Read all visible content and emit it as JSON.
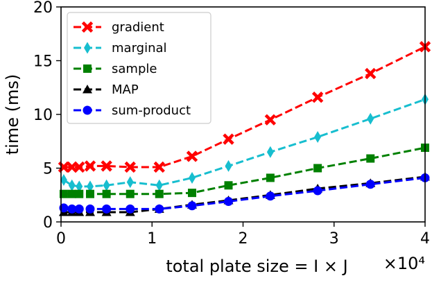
{
  "chart_data": {
    "type": "line",
    "xlabel": "total plate size = I × J",
    "ylabel": "time (ms)",
    "x_multiplier": "×10⁴",
    "xlim": [
      0,
      40000
    ],
    "ylim": [
      0,
      20
    ],
    "xticks": [
      0,
      10000,
      20000,
      30000,
      40000
    ],
    "xtick_labels": [
      "0",
      "1",
      "2",
      "3",
      "4"
    ],
    "yticks": [
      0,
      5,
      10,
      15,
      20
    ],
    "ytick_labels": [
      "0",
      "5",
      "10",
      "15",
      "20"
    ],
    "legend_position": "top-left",
    "grid": false,
    "series": [
      {
        "name": "gradient",
        "color": "#ff0000",
        "marker": "x-filled",
        "x": [
          300,
          1200,
          2000,
          3200,
          5000,
          7600,
          10800,
          14400,
          18400,
          23000,
          28200,
          34000,
          40000
        ],
        "y": [
          5.1,
          5.1,
          5.1,
          5.2,
          5.2,
          5.1,
          5.1,
          6.1,
          7.7,
          9.5,
          11.6,
          13.8,
          16.3
        ]
      },
      {
        "name": "marginal",
        "color": "#17becf",
        "marker": "thin-diamond",
        "x": [
          300,
          1200,
          2000,
          3200,
          5000,
          7600,
          10800,
          14400,
          18400,
          23000,
          28200,
          34000,
          40000
        ],
        "y": [
          3.9,
          3.4,
          3.3,
          3.3,
          3.4,
          3.7,
          3.4,
          4.1,
          5.2,
          6.5,
          7.9,
          9.6,
          11.4
        ]
      },
      {
        "name": "sample",
        "color": "#008000",
        "marker": "square",
        "x": [
          300,
          1200,
          2000,
          3200,
          5000,
          7600,
          10800,
          14400,
          18400,
          23000,
          28200,
          34000,
          40000
        ],
        "y": [
          2.6,
          2.6,
          2.6,
          2.6,
          2.6,
          2.6,
          2.6,
          2.7,
          3.4,
          4.1,
          5.0,
          5.9,
          6.9
        ]
      },
      {
        "name": "MAP",
        "color": "#000000",
        "marker": "triangle",
        "x": [
          300,
          1200,
          2000,
          3200,
          5000,
          7600,
          10800,
          14400,
          18400,
          23000,
          28200,
          34000,
          40000
        ],
        "y": [
          0.9,
          0.9,
          0.9,
          0.9,
          0.9,
          0.9,
          1.2,
          1.6,
          2.0,
          2.5,
          3.1,
          3.6,
          4.2
        ]
      },
      {
        "name": "sum-product",
        "color": "#0000ff",
        "marker": "circle",
        "x": [
          300,
          1200,
          2000,
          3200,
          5000,
          7600,
          10800,
          14400,
          18400,
          23000,
          28200,
          34000,
          40000
        ],
        "y": [
          1.3,
          1.2,
          1.2,
          1.2,
          1.2,
          1.2,
          1.2,
          1.5,
          1.9,
          2.4,
          2.9,
          3.5,
          4.1
        ]
      }
    ]
  }
}
